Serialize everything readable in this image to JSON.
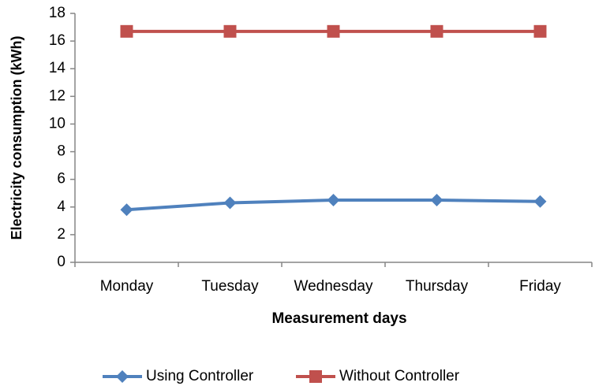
{
  "chart_data": {
    "type": "line",
    "x_label": "Measurement days",
    "y_label": "Electricity consumption (kWh)",
    "categories": [
      "Monday",
      "Tuesday",
      "Wednesday",
      "Thursday",
      "Friday"
    ],
    "series": [
      {
        "name": "Using Controller",
        "color": "#4f81bd",
        "marker": "diamond",
        "values": [
          3.8,
          4.3,
          4.5,
          4.5,
          4.4
        ]
      },
      {
        "name": "Without Controller",
        "color": "#c0504d",
        "marker": "square",
        "values": [
          16.7,
          16.7,
          16.7,
          16.7,
          16.7
        ]
      }
    ],
    "ylim": [
      0,
      18
    ],
    "yticks": [
      0,
      2,
      4,
      6,
      8,
      10,
      12,
      14,
      16,
      18
    ],
    "grid": false,
    "legend": "bottom"
  }
}
